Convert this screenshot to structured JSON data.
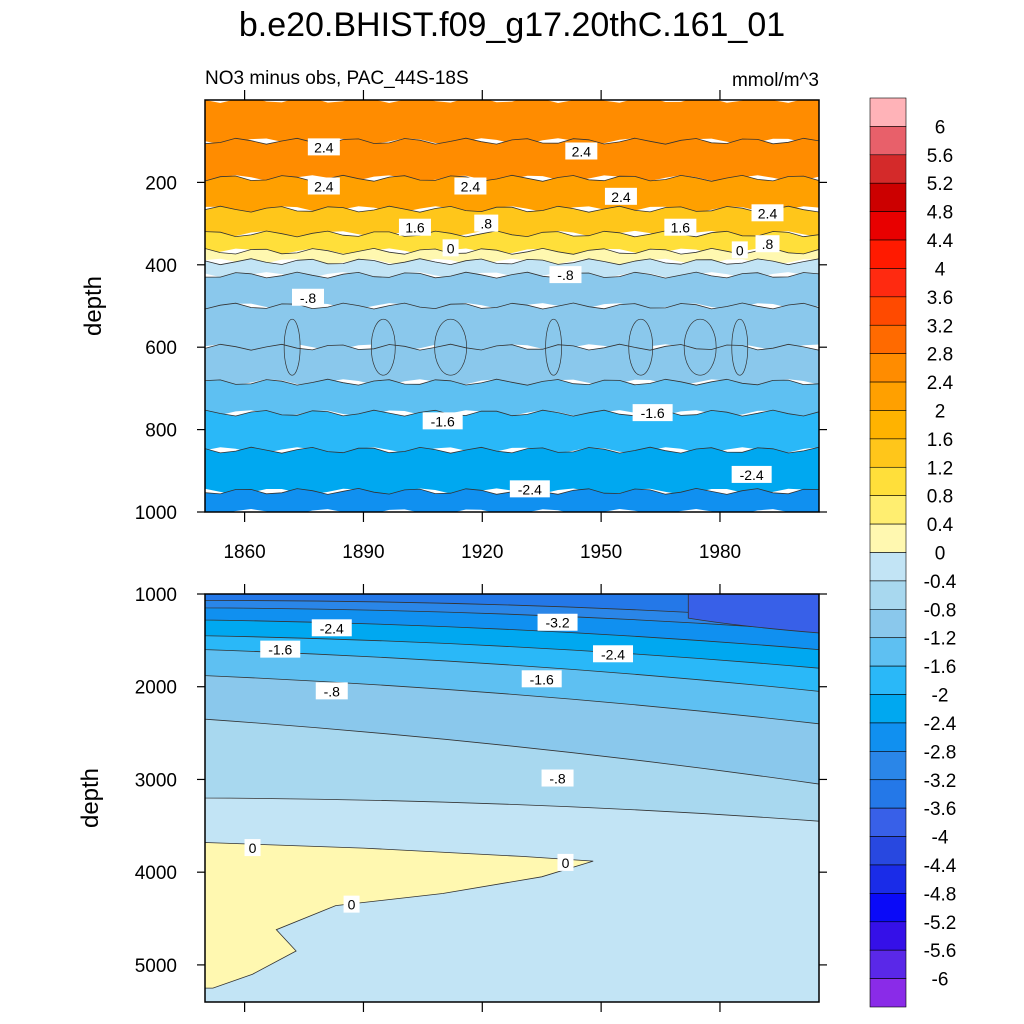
{
  "chart_data": {
    "type": "heatmap",
    "title": "b.e20.BHIST.f09_g17.20thC.161_01",
    "subtitle_left": "NO3 minus obs, PAC_44S-18S",
    "units": "mmol/m^3",
    "panels": [
      {
        "name": "upper-ocean",
        "ylabel": "depth",
        "ylim": [
          0,
          1000
        ],
        "yticks": [
          "200",
          "400",
          "600",
          "800",
          "1000"
        ],
        "yvals": [
          200,
          400,
          600,
          800,
          1000
        ],
        "xlim": [
          1850,
          2005
        ],
        "xticks": [
          "1860",
          "1890",
          "1920",
          "1950",
          "1980"
        ],
        "xvals": [
          1860,
          1890,
          1920,
          1950,
          1980
        ],
        "profile": [
          {
            "depth": 50,
            "value": 2.6
          },
          {
            "depth": 150,
            "value": 2.7
          },
          {
            "depth": 230,
            "value": 2.0
          },
          {
            "depth": 300,
            "value": 1.4
          },
          {
            "depth": 350,
            "value": 0.8
          },
          {
            "depth": 385,
            "value": 0.3
          },
          {
            "depth": 400,
            "value": -0.3
          },
          {
            "depth": 450,
            "value": -0.9
          },
          {
            "depth": 550,
            "value": -1.1
          },
          {
            "depth": 650,
            "value": -1.2
          },
          {
            "depth": 720,
            "value": -1.4
          },
          {
            "depth": 800,
            "value": -1.8
          },
          {
            "depth": 900,
            "value": -2.4
          },
          {
            "depth": 1000,
            "value": -2.6
          }
        ],
        "contour_labels": [
          {
            "text": "2.4",
            "year": 1880,
            "depth": 115
          },
          {
            "text": "2.4",
            "year": 1880,
            "depth": 210
          },
          {
            "text": "2.4",
            "year": 1945,
            "depth": 125
          },
          {
            "text": "2.4",
            "year": 1917,
            "depth": 210
          },
          {
            "text": "2.4",
            "year": 1955,
            "depth": 235
          },
          {
            "text": "2.4",
            "year": 1992,
            "depth": 275
          },
          {
            "text": "1.6",
            "year": 1903,
            "depth": 310
          },
          {
            "text": "1.6",
            "year": 1970,
            "depth": 310
          },
          {
            "text": ".8",
            "year": 1921,
            "depth": 300
          },
          {
            "text": ".8",
            "year": 1992,
            "depth": 350
          },
          {
            "text": "0",
            "year": 1912,
            "depth": 360
          },
          {
            "text": "0",
            "year": 1985,
            "depth": 365
          },
          {
            "text": "-.8",
            "year": 1876,
            "depth": 480
          },
          {
            "text": "-.8",
            "year": 1941,
            "depth": 425
          },
          {
            "text": "-1.6",
            "year": 1910,
            "depth": 780
          },
          {
            "text": "-1.6",
            "year": 1963,
            "depth": 760
          },
          {
            "text": "-2.4",
            "year": 1932,
            "depth": 945
          },
          {
            "text": "-2.4",
            "year": 1988,
            "depth": 910
          }
        ]
      },
      {
        "name": "deep-ocean",
        "ylabel": "depth",
        "ylim": [
          1000,
          5400
        ],
        "yticks": [
          "1000",
          "2000",
          "3000",
          "4000",
          "5000"
        ],
        "yvals": [
          1000,
          2000,
          3000,
          4000,
          5000
        ],
        "xlim": [
          1850,
          2005
        ],
        "xvals": [
          1860,
          1890,
          1920,
          1950,
          1980
        ],
        "contour_labels": [
          {
            "text": "-3.2",
            "year": 1939,
            "depth": 1310
          },
          {
            "text": "-2.4",
            "year": 1882,
            "depth": 1370
          },
          {
            "text": "-2.4",
            "year": 1953,
            "depth": 1650
          },
          {
            "text": "-1.6",
            "year": 1869,
            "depth": 1600
          },
          {
            "text": "-1.6",
            "year": 1935,
            "depth": 1920
          },
          {
            "text": "-.8",
            "year": 1882,
            "depth": 2050
          },
          {
            "text": "-.8",
            "year": 1939,
            "depth": 2990
          },
          {
            "text": "0",
            "year": 1862,
            "depth": 3740
          },
          {
            "text": "0",
            "year": 1941,
            "depth": 3900
          },
          {
            "text": "0",
            "year": 1887,
            "depth": 4350
          }
        ]
      }
    ],
    "legend": {
      "placement": "right",
      "labels": [
        "6",
        "5.6",
        "5.2",
        "4.8",
        "4.4",
        "4",
        "3.6",
        "3.2",
        "2.8",
        "2.4",
        "2",
        "1.6",
        "1.2",
        "0.8",
        "0.4",
        "0",
        "-0.4",
        "-0.8",
        "-1.2",
        "-1.6",
        "-2",
        "-2.4",
        "-2.8",
        "-3.2",
        "-3.6",
        "-4",
        "-4.4",
        "-4.8",
        "-5.2",
        "-5.6",
        "-6"
      ],
      "colors": [
        "#ffb3b8",
        "#e8606a",
        "#d42a2a",
        "#cc0000",
        "#e80000",
        "#ff1a00",
        "#ff2a10",
        "#ff4a00",
        "#ff6a00",
        "#ff8c00",
        "#ffa000",
        "#ffb300",
        "#ffc61a",
        "#ffdf3a",
        "#ffee70",
        "#fff8b0",
        "#c2e4f5",
        "#a8d8ef",
        "#8ac8ec",
        "#5ec0f2",
        "#2ab8f8",
        "#00a8f0",
        "#1090f0",
        "#2a86e8",
        "#2478e8",
        "#3860e8",
        "#2848e0",
        "#1a2ce8",
        "#0a0af8",
        "#3510e8",
        "#5a28e8",
        "#8a2be8"
      ]
    }
  }
}
